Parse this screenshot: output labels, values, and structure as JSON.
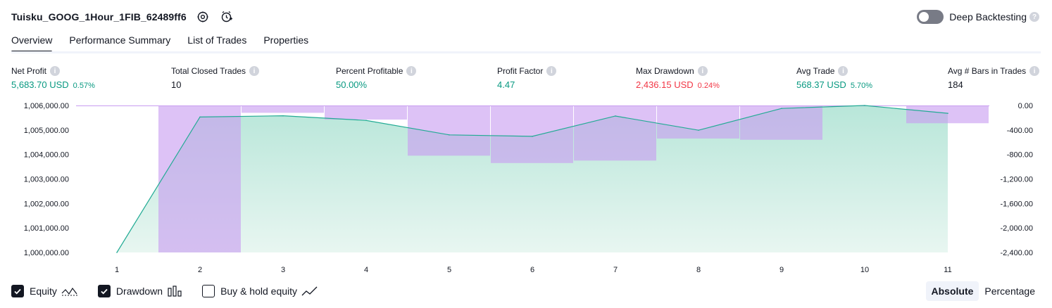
{
  "header": {
    "strategy_name": "Tuisku_GOOG_1Hour_1FIB_62489ff6",
    "icons": [
      "settings-icon",
      "add-alert-icon"
    ],
    "deep_backtesting_label": "Deep Backtesting",
    "deep_backtesting_on": false
  },
  "tabs": [
    {
      "label": "Overview",
      "active": true
    },
    {
      "label": "Performance Summary",
      "active": false
    },
    {
      "label": "List of Trades",
      "active": false
    },
    {
      "label": "Properties",
      "active": false
    }
  ],
  "metrics": {
    "net_profit": {
      "label": "Net Profit",
      "value": "5,683.70 USD",
      "pct": "0.57%"
    },
    "total_closed_trades": {
      "label": "Total Closed Trades",
      "value": "10"
    },
    "percent_profitable": {
      "label": "Percent Profitable",
      "value": "50.00%"
    },
    "profit_factor": {
      "label": "Profit Factor",
      "value": "4.47"
    },
    "max_drawdown": {
      "label": "Max Drawdown",
      "value": "2,436.15 USD",
      "pct": "0.24%"
    },
    "avg_trade": {
      "label": "Avg Trade",
      "value": "568.37 USD",
      "pct": "5.70%"
    },
    "avg_bars": {
      "label": "Avg # Bars in Trades",
      "value": "184"
    }
  },
  "chart_data": {
    "type": "area",
    "x": [
      1,
      2,
      3,
      4,
      5,
      6,
      7,
      8,
      9,
      10,
      11
    ],
    "x_tick_labels": [
      "1",
      "2",
      "3",
      "4",
      "5",
      "6",
      "7",
      "8",
      "9",
      "10",
      "11"
    ],
    "left_axis": {
      "ylim": [
        1000000,
        1006000
      ],
      "tick_labels": [
        "1,006,000.00",
        "1,005,000.00",
        "1,004,000.00",
        "1,003,000.00",
        "1,002,000.00",
        "1,001,000.00",
        "1,000,000.00"
      ],
      "tick_values": [
        1006000,
        1005000,
        1004000,
        1003000,
        1002000,
        1001000,
        1000000
      ]
    },
    "right_axis": {
      "ylim": [
        -2400,
        0
      ],
      "tick_labels": [
        "0.00",
        "-400.00",
        "-800.00",
        "-1,200.00",
        "-1,600.00",
        "-2,000.00",
        "-2,400.00"
      ],
      "tick_values": [
        0,
        -400,
        -800,
        -1200,
        -1600,
        -2000,
        -2400
      ]
    },
    "series": [
      {
        "name": "Equity",
        "axis": "left",
        "values": [
          1000000,
          1005530,
          1005580,
          1005390,
          1004800,
          1004740,
          1005570,
          1004990,
          1005880,
          1006000,
          1005680
        ]
      },
      {
        "name": "Drawdown",
        "axis": "right",
        "values": [
          0,
          -2400,
          -120,
          -230,
          -820,
          -940,
          -900,
          -540,
          -560,
          0,
          -290
        ]
      }
    ],
    "colors": {
      "equity_line": "#22ab94",
      "equity_fill_top": "#b8e6d9",
      "equity_fill_bottom": "#e8f6f1",
      "drawdown_bar": "#c89df0",
      "axis_text": "#131722",
      "profit": "#089981",
      "loss": "#f23645"
    }
  },
  "legend": {
    "items": [
      {
        "label": "Equity",
        "checked": true,
        "icon": "equity-line-icon"
      },
      {
        "label": "Drawdown",
        "checked": true,
        "icon": "drawdown-bars-icon"
      },
      {
        "label": "Buy & hold equity",
        "checked": false,
        "icon": "buy-hold-line-icon"
      }
    ]
  },
  "mode": {
    "absolute_label": "Absolute",
    "percentage_label": "Percentage",
    "active": "Absolute"
  }
}
